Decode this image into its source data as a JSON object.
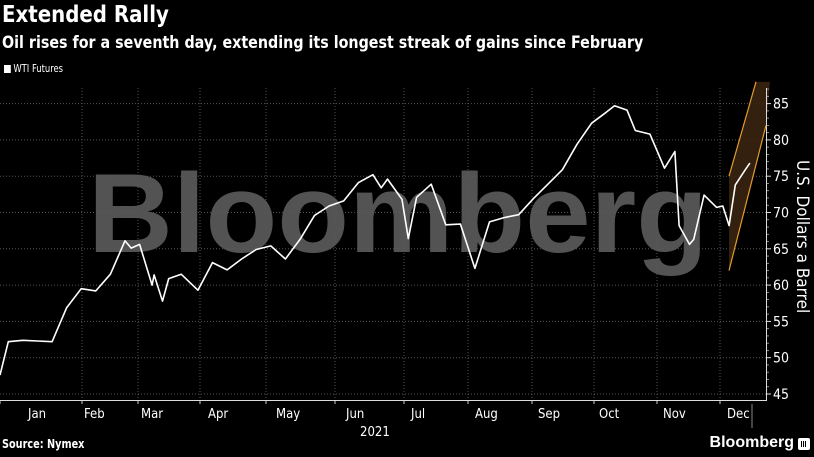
{
  "header": {
    "title": "Extended Rally",
    "subtitle": "Oil rises for a seventh day, extending its longest streak of gains since February"
  },
  "legend": {
    "label": "WTI Futures",
    "color": "#ffffff"
  },
  "footer": {
    "source": "Source: Nymex",
    "brand": "Bloomberg"
  },
  "watermark": "Bloomberg",
  "colors": {
    "background": "#000000",
    "line": "#ffffff",
    "band_fill": "#3a2410",
    "band_stroke": "#e39a2e",
    "grid": "#555555"
  },
  "chart_data": {
    "type": "line",
    "title": "Extended Rally",
    "subtitle": "Oil rises for a seventh day, extending its longest streak of gains since February",
    "xlabel": "2021",
    "ylabel": "U.S. Dollars a Barrel",
    "ylim": [
      44,
      88
    ],
    "yticks": [
      45,
      50,
      55,
      60,
      65,
      70,
      75,
      80,
      85
    ],
    "xticks": [
      "Jan",
      "Feb",
      "Mar",
      "Apr",
      "May",
      "Jun",
      "Jul",
      "Aug",
      "Sep",
      "Oct",
      "Nov",
      "Dec"
    ],
    "grid": true,
    "legend_position": "top-left",
    "series": [
      {
        "name": "WTI Futures",
        "x": [
          "2021-01-04",
          "2021-01-08",
          "2021-01-15",
          "2021-01-22",
          "2021-01-29",
          "2021-02-05",
          "2021-02-12",
          "2021-02-19",
          "2021-02-26",
          "2021-03-05",
          "2021-03-08",
          "2021-03-12",
          "2021-03-18",
          "2021-03-19",
          "2021-03-23",
          "2021-03-26",
          "2021-04-01",
          "2021-04-09",
          "2021-04-16",
          "2021-04-23",
          "2021-04-30",
          "2021-05-07",
          "2021-05-14",
          "2021-05-21",
          "2021-05-28",
          "2021-06-04",
          "2021-06-11",
          "2021-06-18",
          "2021-06-25",
          "2021-07-02",
          "2021-07-06",
          "2021-07-09",
          "2021-07-16",
          "2021-07-19",
          "2021-07-23",
          "2021-07-30",
          "2021-08-06",
          "2021-08-13",
          "2021-08-20",
          "2021-08-27",
          "2021-09-03",
          "2021-09-10",
          "2021-09-17",
          "2021-09-24",
          "2021-10-01",
          "2021-10-08",
          "2021-10-15",
          "2021-10-22",
          "2021-10-26",
          "2021-11-01",
          "2021-11-05",
          "2021-11-12",
          "2021-11-19",
          "2021-11-24",
          "2021-11-26",
          "2021-12-01",
          "2021-12-03",
          "2021-12-08",
          "2021-12-14",
          "2021-12-17",
          "2021-12-20",
          "2021-12-23",
          "2021-12-28",
          "2021-12-30"
        ],
        "values": [
          47.6,
          52.2,
          52.4,
          52.3,
          52.2,
          56.9,
          59.5,
          59.2,
          61.5,
          66.1,
          65.1,
          65.6,
          60.0,
          61.4,
          57.8,
          60.9,
          61.5,
          59.3,
          63.1,
          62.1,
          63.6,
          64.9,
          65.4,
          63.6,
          66.3,
          69.6,
          70.9,
          71.6,
          74.1,
          75.2,
          73.4,
          74.6,
          71.8,
          66.4,
          72.1,
          73.9,
          68.3,
          68.4,
          62.3,
          68.7,
          69.3,
          69.7,
          71.9,
          73.9,
          75.9,
          79.4,
          82.3,
          83.8,
          84.7,
          84.1,
          81.3,
          80.8,
          76.1,
          78.4,
          68.2,
          65.6,
          66.3,
          72.4,
          70.7,
          70.9,
          68.2,
          73.8,
          76.0,
          76.8
        ]
      }
    ],
    "band": {
      "description": "Orange projection channel",
      "upper": [
        [
          "2021-12-20",
          75
        ],
        [
          "2021-12-31",
          88
        ]
      ],
      "lower": [
        [
          "2021-12-20",
          62
        ],
        [
          "2021-12-31",
          82
        ]
      ]
    }
  }
}
